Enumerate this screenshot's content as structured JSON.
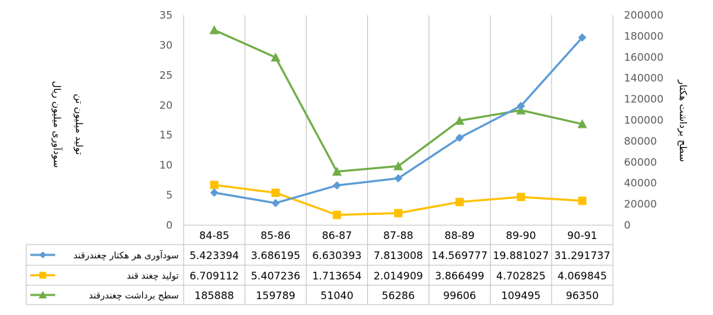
{
  "chart_data": {
    "type": "line",
    "categories": [
      "84-85",
      "85-86",
      "86-87",
      "87-88",
      "88-89",
      "89-90",
      "90-91"
    ],
    "y_left": {
      "label_line1": "سودآوری میلیون ریال",
      "label_line2": "تولید میلیون تن",
      "range": [
        0,
        35
      ],
      "ticks": [
        0,
        5,
        10,
        15,
        20,
        25,
        30,
        35
      ]
    },
    "y_right": {
      "label": "سطح برداشت هکتار",
      "range": [
        0,
        200000
      ],
      "ticks": [
        0,
        20000,
        40000,
        60000,
        80000,
        100000,
        120000,
        140000,
        160000,
        180000,
        200000
      ]
    },
    "grid": "vertical category lines",
    "legend_placement": "data table below chart",
    "series": [
      {
        "name": "سودآوری هر هکتار چغندرقند",
        "axis": "left",
        "color": "#5B9BD5",
        "marker": "diamond",
        "values": [
          5.423394,
          3.686195,
          6.630393,
          7.813008,
          14.569777,
          19.881027,
          31.291737
        ],
        "labels": [
          "5.423394",
          "3.686195",
          "6.630393",
          "7.813008",
          "14.569777",
          "19.881027",
          "31.291737"
        ]
      },
      {
        "name": "تولید چغند قند",
        "axis": "left",
        "color": "#FFC000",
        "marker": "square",
        "values": [
          6.709112,
          5.407236,
          1.713654,
          2.014909,
          3.866499,
          4.702825,
          4.069845
        ],
        "labels": [
          "6.709112",
          "5.407236",
          "1.713654",
          "2.014909",
          "3.866499",
          "4.702825",
          "4.069845"
        ]
      },
      {
        "name": "سطح برداشت چغندرقند",
        "axis": "right",
        "color": "#70AD47",
        "marker": "triangle",
        "values": [
          185888,
          159789,
          51040,
          56286,
          99606,
          109495,
          96350
        ],
        "labels": [
          "185888",
          "159789",
          "51040",
          "56286",
          "99606",
          "109495",
          "96350"
        ]
      }
    ]
  }
}
